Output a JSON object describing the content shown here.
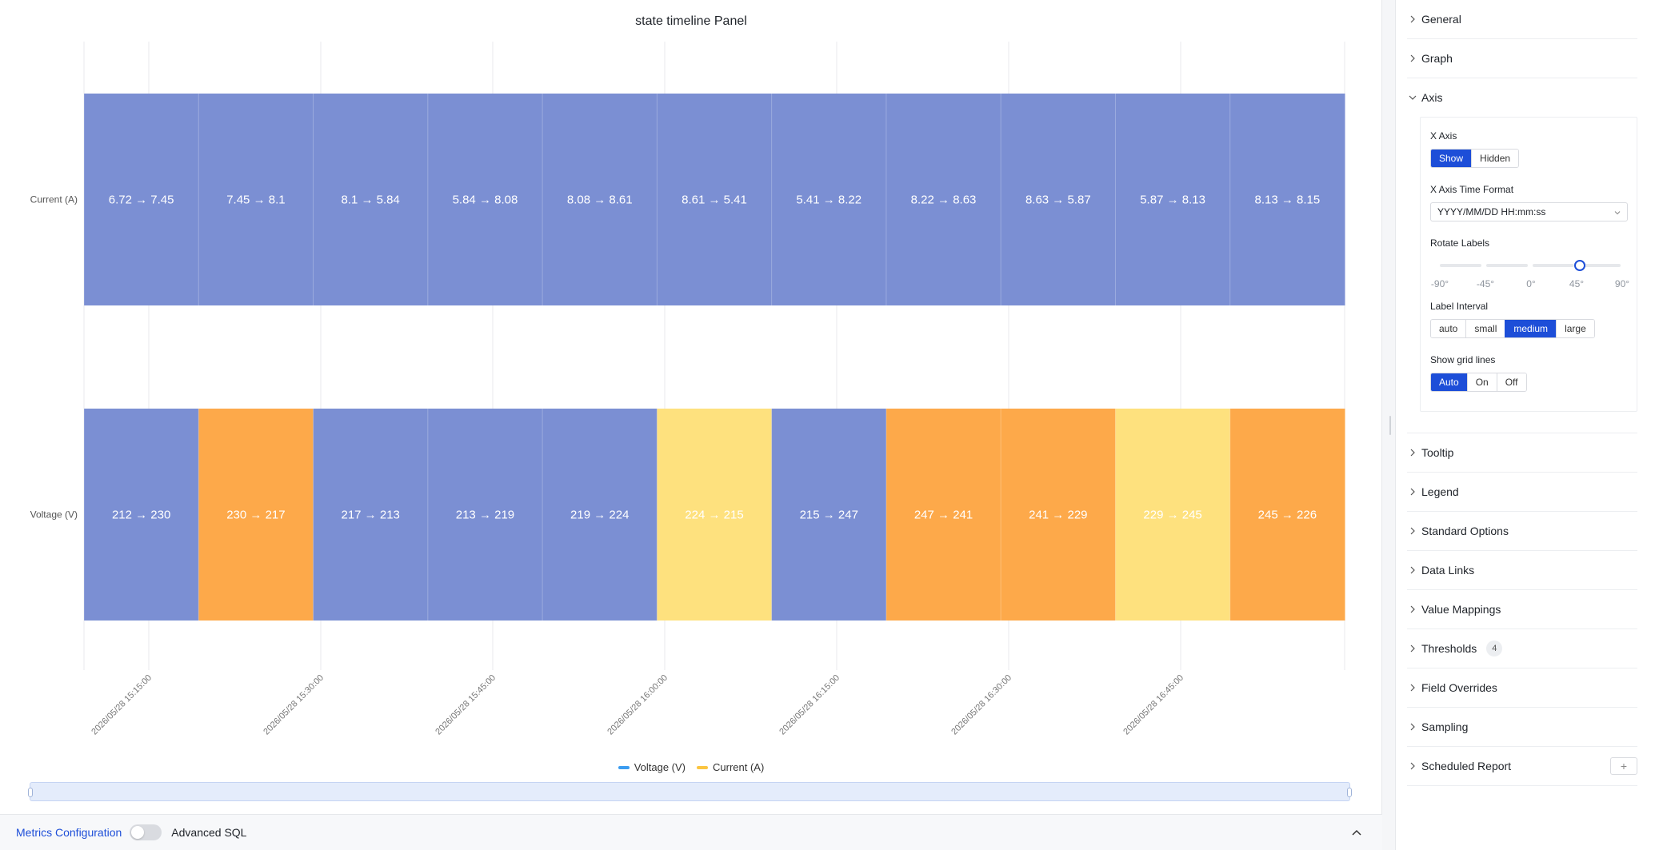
{
  "panel": {
    "title": "state timeline Panel"
  },
  "chart_data": {
    "type": "state-timeline",
    "rows": [
      "Current (A)",
      "Voltage (V)"
    ],
    "x_ticks": [
      "2026/05/28 15:15:00",
      "2026/05/28 15:30:00",
      "2026/05/28 15:45:00",
      "2026/05/28 16:00:00",
      "2026/05/28 16:15:00",
      "2026/05/28 16:30:00",
      "2026/05/28 16:45:00"
    ],
    "series": [
      {
        "name": "Current (A)",
        "segments": [
          {
            "label": "6.72 → 7.45",
            "color": "#7b8fd3"
          },
          {
            "label": "7.45 → 8.1",
            "color": "#7b8fd3"
          },
          {
            "label": "8.1 → 5.84",
            "color": "#7b8fd3"
          },
          {
            "label": "5.84 → 8.08",
            "color": "#7b8fd3"
          },
          {
            "label": "8.08 → 8.61",
            "color": "#7b8fd3"
          },
          {
            "label": "8.61 → 5.41",
            "color": "#7b8fd3"
          },
          {
            "label": "5.41 → 8.22",
            "color": "#7b8fd3"
          },
          {
            "label": "8.22 → 8.63",
            "color": "#7b8fd3"
          },
          {
            "label": "8.63 → 5.87",
            "color": "#7b8fd3"
          },
          {
            "label": "5.87 → 8.13",
            "color": "#7b8fd3"
          },
          {
            "label": "8.13 → 8.15",
            "color": "#7b8fd3"
          }
        ]
      },
      {
        "name": "Voltage (V)",
        "segments": [
          {
            "label": "212 → 230",
            "color": "#7b8fd3"
          },
          {
            "label": "230 → 217",
            "color": "#fda94a"
          },
          {
            "label": "217 → 213",
            "color": "#7b8fd3"
          },
          {
            "label": "213 → 219",
            "color": "#7b8fd3"
          },
          {
            "label": "219 → 224",
            "color": "#7b8fd3"
          },
          {
            "label": "224 → 215",
            "color": "#fee17e"
          },
          {
            "label": "215 → 247",
            "color": "#7b8fd3"
          },
          {
            "label": "247 → 241",
            "color": "#fda94a"
          },
          {
            "label": "241 → 229",
            "color": "#fda94a"
          },
          {
            "label": "229 → 245",
            "color": "#fee17e"
          },
          {
            "label": "245 → 226",
            "color": "#fda94a"
          }
        ]
      }
    ],
    "legend": [
      {
        "name": "Voltage (V)",
        "color": "#3b9cf0"
      },
      {
        "name": "Current (A)",
        "color": "#fbc541"
      }
    ],
    "grid": true,
    "legend_position": "bottom"
  },
  "bottom_bar": {
    "metrics_link": "Metrics Configuration",
    "advanced_sql": "Advanced SQL"
  },
  "sidebar": {
    "sections_top": [
      "General",
      "Graph"
    ],
    "axis": {
      "title": "Axis",
      "x_axis_label": "X Axis",
      "x_axis_options": [
        "Show",
        "Hidden"
      ],
      "x_axis_selected": "Show",
      "time_format_label": "X Axis Time Format",
      "time_format_value": "YYYY/MM/DD HH:mm:ss",
      "rotate_label": "Rotate Labels",
      "rotate_marks": [
        "-90°",
        "-45°",
        "0°",
        "45°",
        "90°"
      ],
      "rotate_value": 45,
      "interval_label": "Label Interval",
      "interval_options": [
        "auto",
        "small",
        "medium",
        "large"
      ],
      "interval_selected": "medium",
      "grid_label": "Show grid lines",
      "grid_options": [
        "Auto",
        "On",
        "Off"
      ],
      "grid_selected": "Auto"
    },
    "sections_bottom": [
      "Tooltip",
      "Legend",
      "Standard Options",
      "Data Links",
      "Value Mappings",
      "Thresholds",
      "Field Overrides",
      "Sampling",
      "Scheduled Report"
    ],
    "thresholds_count": "4",
    "scheduled_plus": "+",
    "accent": "#1d4ed8"
  }
}
